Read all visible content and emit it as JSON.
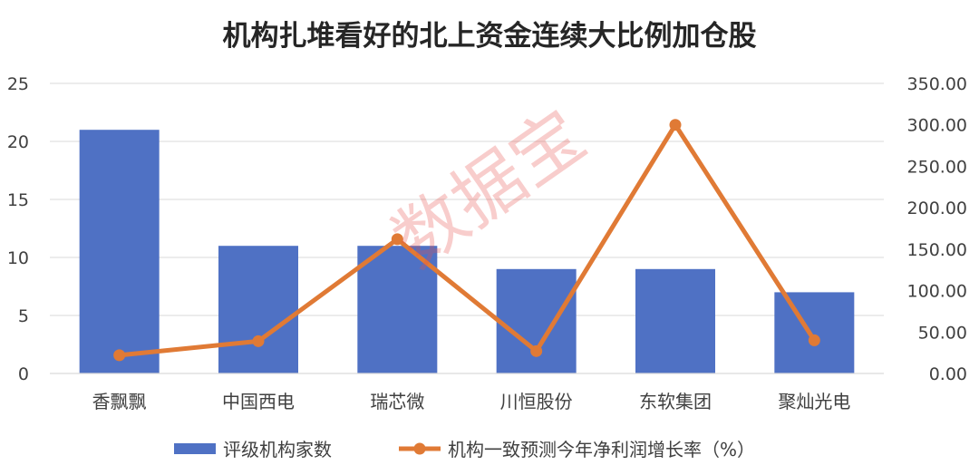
{
  "chart_data": {
    "type": "bar+line",
    "title": "机构扎堆看好的北上资金连续大比例加仓股",
    "categories": [
      "香飘飘",
      "中国西电",
      "瑞芯微",
      "川恒股份",
      "东软集团",
      "聚灿光电"
    ],
    "series": [
      {
        "name": "评级机构家数",
        "type": "bar",
        "axis": "left",
        "color": "#4f71c4",
        "values": [
          21,
          11,
          11,
          9,
          9,
          7
        ]
      },
      {
        "name": "机构一致预测今年净利润增长率（%）",
        "type": "line",
        "axis": "right",
        "color": "#e07a35",
        "values": [
          22,
          39,
          162,
          27,
          300,
          40
        ]
      }
    ],
    "y_left": {
      "ylim": [
        0,
        25
      ],
      "ticks": [
        "0",
        "5",
        "10",
        "15",
        "20",
        "25"
      ]
    },
    "y_right": {
      "ylim": [
        0,
        350
      ],
      "ticks": [
        "0.00",
        "50.00",
        "100.00",
        "150.00",
        "200.00",
        "250.00",
        "300.00",
        "350.00"
      ]
    },
    "grid": true,
    "legend_position": "bottom"
  },
  "watermark": {
    "text": "数据宝",
    "color": "#e8504a"
  },
  "colors": {
    "grid": "#d9d9d9",
    "axis_text": "#404040",
    "title": "#262626"
  }
}
